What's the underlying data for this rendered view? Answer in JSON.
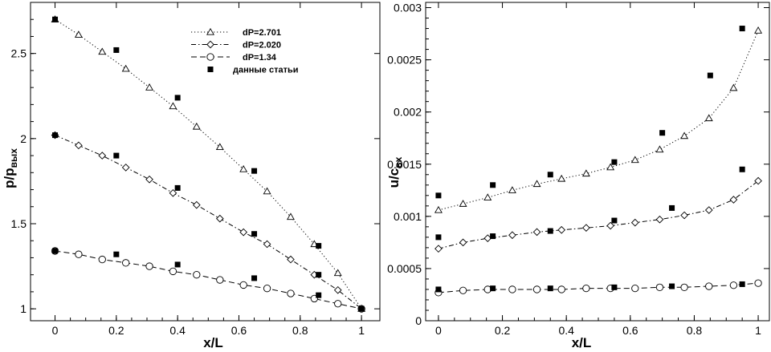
{
  "chart_data": [
    {
      "type": "line",
      "xlabel": "x/L",
      "ylabel": "p/p",
      "ylabel_sub": "вых",
      "xlim": [
        -0.08,
        1.06
      ],
      "ylim": [
        0.93,
        2.8
      ],
      "xticks": [
        0,
        0.2,
        0.4,
        0.6,
        0.8,
        1
      ],
      "xtick_labels": [
        "0",
        "0.2",
        "0.4",
        "0.6",
        "0.8",
        "1"
      ],
      "yticks": [
        1,
        1.5,
        2,
        2.5
      ],
      "ytick_labels": [
        "1",
        "1.5",
        "2",
        "2.5"
      ],
      "legend_position": "top-right",
      "series": [
        {
          "name": "dP=2.701",
          "marker": "triangle",
          "line": "dotted",
          "x": [
            0,
            0.077,
            0.154,
            0.231,
            0.308,
            0.385,
            0.462,
            0.538,
            0.615,
            0.692,
            0.769,
            0.846,
            0.923,
            1
          ],
          "y": [
            2.7,
            2.61,
            2.51,
            2.41,
            2.3,
            2.19,
            2.07,
            1.95,
            1.82,
            1.69,
            1.54,
            1.38,
            1.21,
            1.0
          ]
        },
        {
          "name": "dP=2.020",
          "marker": "diamond",
          "line": "dashdot",
          "x": [
            0,
            0.077,
            0.154,
            0.231,
            0.308,
            0.385,
            0.462,
            0.538,
            0.615,
            0.692,
            0.769,
            0.846,
            0.923,
            1
          ],
          "y": [
            2.02,
            1.96,
            1.9,
            1.83,
            1.76,
            1.68,
            1.61,
            1.53,
            1.45,
            1.38,
            1.29,
            1.2,
            1.11,
            1.0
          ]
        },
        {
          "name": "dP=1.34",
          "marker": "circle",
          "line": "dashed",
          "x": [
            0,
            0.077,
            0.154,
            0.231,
            0.308,
            0.385,
            0.462,
            0.538,
            0.615,
            0.692,
            0.769,
            0.846,
            0.923,
            1
          ],
          "y": [
            1.34,
            1.32,
            1.29,
            1.27,
            1.25,
            1.22,
            1.2,
            1.17,
            1.14,
            1.12,
            1.09,
            1.06,
            1.03,
            1.0
          ]
        },
        {
          "name": "данные статьи",
          "marker": "square",
          "line": "none",
          "x": [
            0,
            0.2,
            0.4,
            0.65,
            0.86,
            1,
            0,
            0.2,
            0.4,
            0.65,
            0.86,
            1,
            0,
            0.2,
            0.4,
            0.65,
            0.86
          ],
          "y": [
            2.7,
            2.52,
            2.24,
            1.81,
            1.37,
            1.0,
            2.02,
            1.9,
            1.71,
            1.44,
            1.2,
            1.0,
            1.34,
            1.32,
            1.26,
            1.18,
            1.08
          ]
        }
      ],
      "legend": {
        "entries": [
          "dP=2.701",
          "dP=2.020",
          "dP=1.34",
          "данные статьи"
        ]
      }
    },
    {
      "type": "line",
      "xlabel": "x/L",
      "ylabel": "u/c",
      "ylabel_sub": "вх",
      "xlim": [
        -0.04,
        1.035
      ],
      "ylim": [
        0,
        0.00305
      ],
      "xticks": [
        0,
        0.2,
        0.4,
        0.6,
        0.8,
        1
      ],
      "xtick_labels": [
        "0",
        "0.2",
        "0.4",
        "0.6",
        "0.8",
        "1"
      ],
      "yticks": [
        0,
        0.0005,
        0.001,
        0.0015,
        0.002,
        0.0025,
        0.003
      ],
      "ytick_labels": [
        "0",
        "0.0005",
        "0.001",
        "0.0015",
        "0.002",
        "0.0025",
        "0.003"
      ],
      "series": [
        {
          "marker": "triangle",
          "line": "dotted",
          "x": [
            0,
            0.077,
            0.154,
            0.231,
            0.308,
            0.385,
            0.462,
            0.538,
            0.615,
            0.692,
            0.769,
            0.846,
            0.923,
            1
          ],
          "y": [
            0.00106,
            0.00112,
            0.00118,
            0.00125,
            0.00131,
            0.00136,
            0.00141,
            0.00147,
            0.00154,
            0.00164,
            0.00177,
            0.00194,
            0.00223,
            0.00278
          ]
        },
        {
          "marker": "diamond",
          "line": "dashdot",
          "x": [
            0,
            0.077,
            0.154,
            0.231,
            0.308,
            0.385,
            0.462,
            0.538,
            0.615,
            0.692,
            0.769,
            0.846,
            0.923,
            1
          ],
          "y": [
            0.00069,
            0.00075,
            0.00079,
            0.00082,
            0.00085,
            0.00087,
            0.00089,
            0.00091,
            0.00094,
            0.00097,
            0.00101,
            0.00106,
            0.00116,
            0.00134
          ]
        },
        {
          "marker": "circle",
          "line": "dashed",
          "x": [
            0,
            0.077,
            0.154,
            0.231,
            0.308,
            0.385,
            0.462,
            0.538,
            0.615,
            0.692,
            0.769,
            0.846,
            0.923,
            1
          ],
          "y": [
            0.00027,
            0.00029,
            0.0003,
            0.0003,
            0.0003,
            0.0003,
            0.00031,
            0.00031,
            0.00031,
            0.00032,
            0.00032,
            0.00033,
            0.00034,
            0.00036
          ]
        },
        {
          "marker": "square",
          "line": "none",
          "x": [
            0,
            0.17,
            0.35,
            0.55,
            0.7,
            0.85,
            0.95,
            0,
            0.17,
            0.35,
            0.55,
            0.73,
            0.95,
            0,
            0.17,
            0.35,
            0.55,
            0.73,
            0.95
          ],
          "y": [
            0.0012,
            0.0013,
            0.0014,
            0.00152,
            0.0018,
            0.00235,
            0.0028,
            0.0008,
            0.00081,
            0.00086,
            0.00096,
            0.00108,
            0.00145,
            0.0003,
            0.00031,
            0.00031,
            0.00032,
            0.00033,
            0.00035
          ]
        }
      ]
    }
  ]
}
